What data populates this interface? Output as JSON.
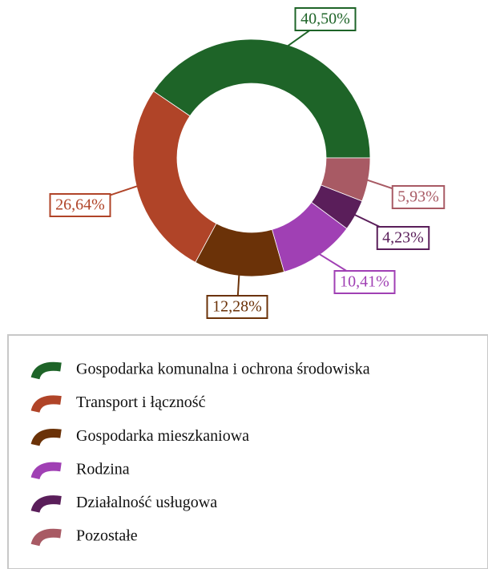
{
  "chart_data": {
    "type": "donut",
    "categories": [
      "Gospodarka komunalna i ochrona środowiska",
      "Transport i łączność",
      "Gospodarka mieszkaniowa",
      "Rodzina",
      "Działalność usługowa",
      "Pozostałe"
    ],
    "values": [
      40.5,
      26.64,
      12.28,
      10.41,
      4.23,
      5.93
    ],
    "value_labels": [
      "40,50%",
      "26,64%",
      "12,28%",
      "10,41%",
      "4,23%",
      "5,93%"
    ],
    "colors": [
      "#1e6428",
      "#b04428",
      "#6b3208",
      "#a040b4",
      "#5a1e5a",
      "#a85a64"
    ],
    "legend": "bottom"
  }
}
